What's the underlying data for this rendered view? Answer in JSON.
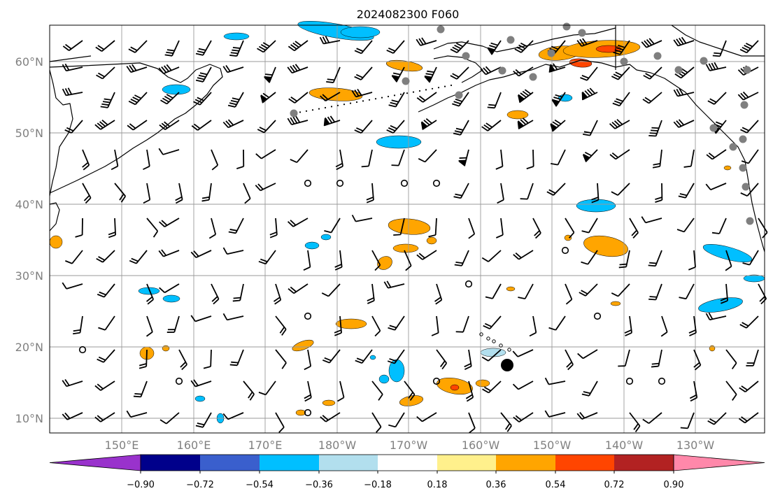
{
  "title": "2024082300 F060",
  "map": {
    "lat_labels": [
      "60°N",
      "50°N",
      "40°N",
      "30°N",
      "20°N",
      "10°N"
    ],
    "lon_labels": [
      "150°E",
      "160°E",
      "170°E",
      "180°W",
      "170°W",
      "160°W",
      "150°W",
      "140°W",
      "130°W"
    ]
  },
  "colorbar": {
    "ticks": [
      "−0.90",
      "−0.72",
      "−0.54",
      "−0.36",
      "−0.18",
      "0.18",
      "0.36",
      "0.54",
      "0.72",
      "0.90"
    ],
    "colors": [
      "#9932cc",
      "#00008b",
      "#3a5fcd",
      "#00bfff",
      "#b2dfee",
      "#ffffff",
      "#fff08c",
      "#ffa500",
      "#ff4500",
      "#b22222",
      "#ff88aa"
    ]
  },
  "markers": {
    "big_dot": "black-dot",
    "stations": "gray-station-dots",
    "calm": "calm-circles"
  }
}
